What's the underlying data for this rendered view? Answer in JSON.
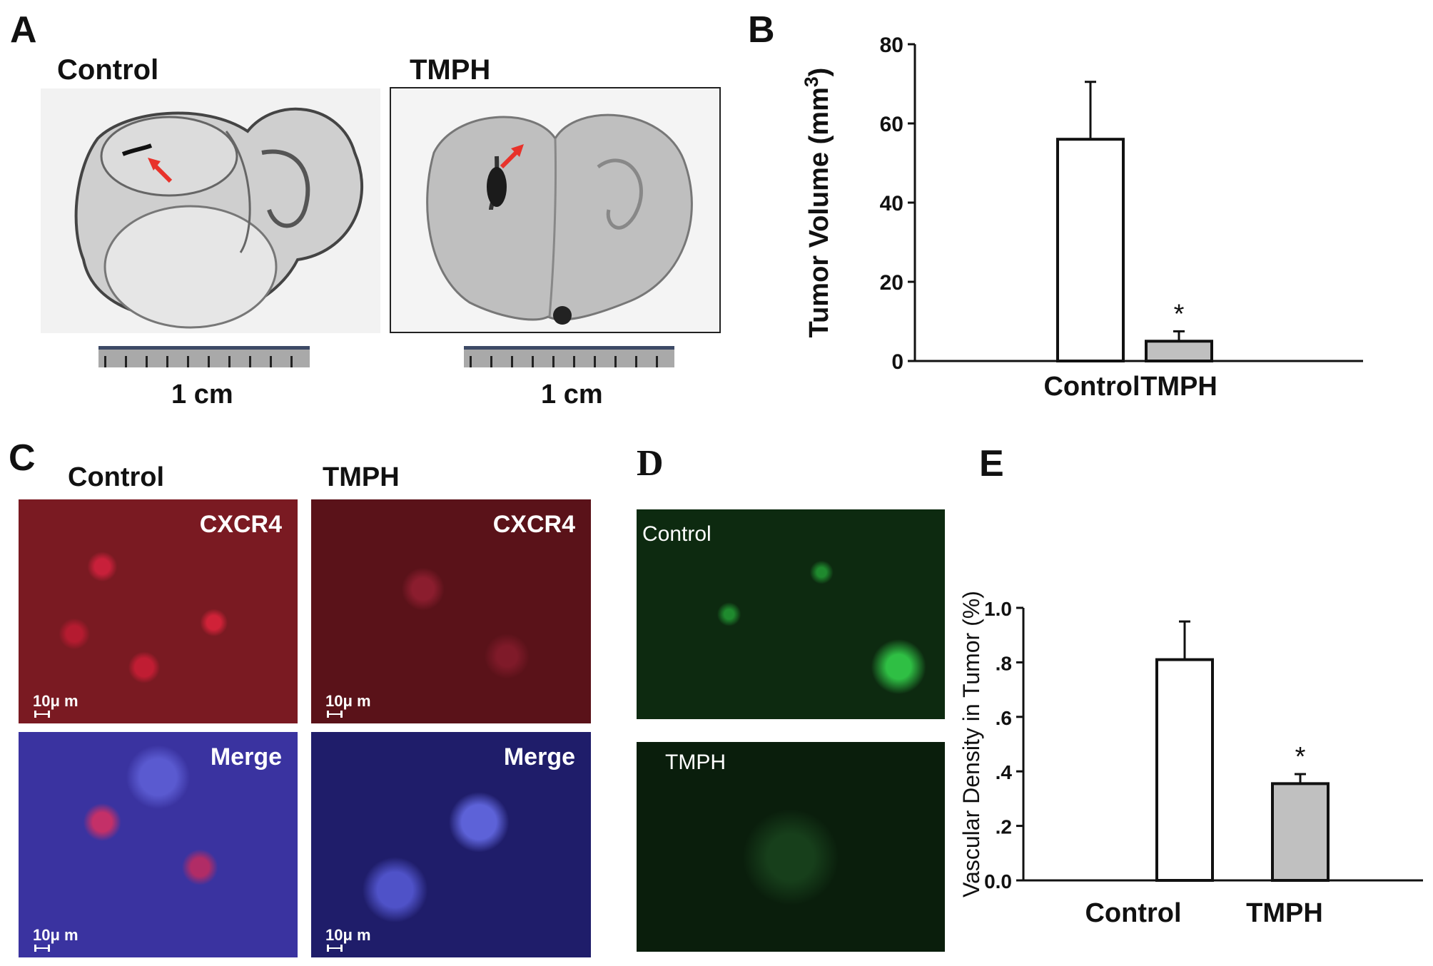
{
  "panels": {
    "A": {
      "letter": "A",
      "control_label": "Control",
      "tmph_label": "TMPH",
      "scale_left": "1 cm",
      "scale_right": "1 cm"
    },
    "B": {
      "letter": "B"
    },
    "C": {
      "letter": "C",
      "control_label": "Control",
      "tmph_label": "TMPH",
      "tags": [
        "CXCR4",
        "CXCR4",
        "Merge",
        "Merge"
      ],
      "scalebar": "10μ m"
    },
    "D": {
      "letter": "D",
      "control_label": "Control",
      "tmph_label": "TMPH"
    },
    "E": {
      "letter": "E"
    }
  },
  "colors": {
    "control_bar": "#ffffff",
    "tmph_bar": "#c0c0c0",
    "arrow": "#e8322a",
    "cxcr4": "#c0152a",
    "merge_nuclei": "#3a3acf",
    "cd31_green": "#39d94a"
  },
  "chart_data": [
    {
      "type": "bar",
      "panel": "B",
      "categories": [
        "Control",
        "TMPH"
      ],
      "values": [
        56,
        5
      ],
      "error_upper": [
        70.5,
        7.5
      ],
      "ylabel": "Tumor Volume (mm3)",
      "ylim": [
        0,
        80
      ],
      "yticks": [
        "0",
        "20",
        "40",
        "60",
        "80"
      ],
      "annotations": [
        "*"
      ],
      "grid": false
    },
    {
      "type": "bar",
      "panel": "E",
      "categories": [
        "Control",
        "TMPH"
      ],
      "values": [
        0.81,
        0.355
      ],
      "error_upper": [
        0.95,
        0.39
      ],
      "ylabel": "Vascular Density in Tumor (%)",
      "ylim": [
        0,
        1.0
      ],
      "yticks": [
        "0.0",
        ".2",
        ".4",
        ".6",
        ".8",
        "1.0"
      ],
      "annotations": [
        "*"
      ],
      "grid": false
    }
  ]
}
